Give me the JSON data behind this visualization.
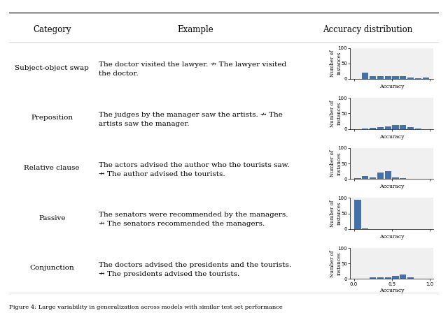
{
  "caption": "Figure 4: Large variability in generalization across models with similar test set performance",
  "headers": [
    "Category",
    "Example",
    "Accuracy distribution"
  ],
  "rows": [
    {
      "category": "Subject-object swap",
      "example_line1": "The doctor visited the lawyer. ↛ The lawyer visited",
      "example_line2": "the doctor.",
      "hist_data": [
        0,
        20,
        8,
        10,
        10,
        10,
        10,
        5,
        2,
        5
      ]
    },
    {
      "category": "Preposition",
      "example_line1": "The judges by the manager saw the artists. ↛ The",
      "example_line2": "artists saw the manager.",
      "hist_data": [
        0,
        2,
        3,
        5,
        8,
        12,
        12,
        5,
        2,
        0
      ]
    },
    {
      "category": "Relative clause",
      "example_line1": "The actors advised the author who the tourists saw.",
      "example_line2": "↛ The author advised the tourists.",
      "hist_data": [
        2,
        10,
        5,
        20,
        25,
        5,
        2,
        0,
        0,
        0
      ]
    },
    {
      "category": "Passive",
      "example_line1": "The senators were recommended by the managers.",
      "example_line2": "↛ The senators recommended the managers.",
      "hist_data": [
        95,
        2,
        0,
        0,
        0,
        0,
        0,
        0,
        0,
        0
      ]
    },
    {
      "category": "Conjunction",
      "example_line1": "The doctors advised the presidents and the tourists.",
      "example_line2": "↛ The presidents advised the tourists.",
      "hist_data": [
        0,
        2,
        5,
        5,
        5,
        10,
        15,
        5,
        2,
        0
      ]
    }
  ],
  "bin_edges": [
    0.0,
    0.1,
    0.2,
    0.3,
    0.4,
    0.5,
    0.6,
    0.7,
    0.8,
    0.9,
    1.0
  ],
  "hist_color": "#4472a8",
  "hist_ylim": [
    0,
    100
  ],
  "hist_yticks": [
    0,
    50,
    100
  ],
  "hist_xlim": [
    -0.05,
    1.05
  ],
  "hist_xticks": [
    0.0,
    0.5,
    1.0
  ],
  "hist_xlabel": "Accuracy",
  "hist_ylabel": "Number of\ninstances",
  "background_color": "#ffffff",
  "text_font_size": 7.5,
  "header_font_size": 8.5
}
